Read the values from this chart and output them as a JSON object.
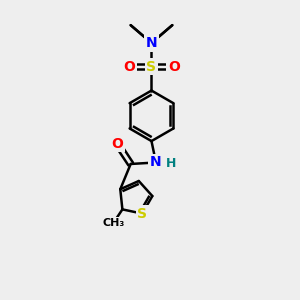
{
  "background_color": "#eeeeee",
  "atom_colors": {
    "C": "#000000",
    "N": "#0000ff",
    "O": "#ff0000",
    "S": "#cccc00",
    "H": "#008080"
  },
  "bond_color": "#000000",
  "bond_width": 1.8,
  "figsize": [
    3.0,
    3.0
  ],
  "dpi": 100,
  "xlim": [
    0,
    10
  ],
  "ylim": [
    0,
    10
  ]
}
